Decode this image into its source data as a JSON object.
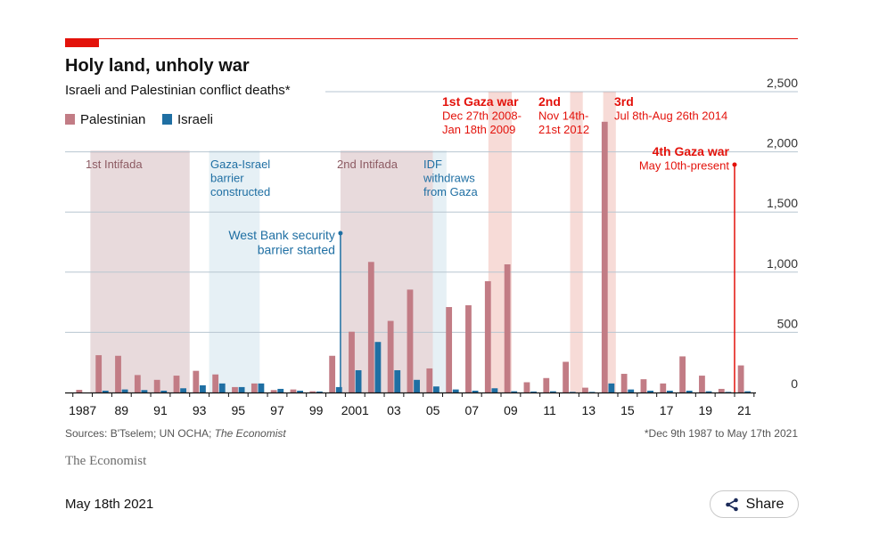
{
  "header": {
    "title": "Holy land, unholy war",
    "subtitle": "Israeli and Palestinian conflict deaths*"
  },
  "legend": [
    {
      "label": "Palestinian",
      "color": "#c27c85"
    },
    {
      "label": "Israeli",
      "color": "#1f6fa3"
    }
  ],
  "periods": [
    {
      "label_lines": [
        "1st Intifada"
      ],
      "start": 1987.9,
      "end": 1993.0,
      "kind": "palestinian-red"
    },
    {
      "label_lines": [
        "Gaza-Israel",
        "barrier",
        "constructed"
      ],
      "start": 1994.0,
      "end": 1996.6,
      "kind": "israeli-blue"
    },
    {
      "label_lines": [
        "2nd Intifada"
      ],
      "start": 2000.75,
      "end": 2005.5,
      "kind": "palestinian-red"
    },
    {
      "label_lines": [
        "IDF",
        "withdraws",
        "from Gaza"
      ],
      "start": 2005.5,
      "end": 2006.2,
      "kind": "israeli-blue"
    },
    {
      "label_lines": [
        "1st Gaza war",
        "Dec 27th 2008-",
        "Jan 18th 2009"
      ],
      "start": 2008.35,
      "end": 2009.55,
      "kind": "war"
    },
    {
      "label_lines": [
        "2nd",
        "Nov 14th-",
        "21st 2012"
      ],
      "start": 2012.55,
      "end": 2013.2,
      "kind": "war"
    },
    {
      "label_lines": [
        "3rd",
        "Jul 8th-Aug 26th 2014"
      ],
      "start": 2014.25,
      "end": 2014.9,
      "kind": "war"
    }
  ],
  "annotations": [
    {
      "label_lines": [
        "West Bank security",
        "barrier started"
      ],
      "year": 2000.75,
      "kind": "israeli-blue"
    },
    {
      "label_lines": [
        "4th Gaza war",
        "May 10th-present"
      ],
      "year": 2021.0,
      "kind": "war"
    }
  ],
  "chart_data": {
    "type": "bar",
    "title": "Holy land, unholy war",
    "subtitle": "Israeli and Palestinian conflict deaths*",
    "xlabel": "",
    "ylabel": "",
    "ylim": [
      0,
      2500
    ],
    "yticks": [
      0,
      500,
      1000,
      1500,
      2000,
      2500
    ],
    "ytick_labels": [
      "0",
      "500",
      "1,000",
      "1,500",
      "2,000",
      "2,500"
    ],
    "categories": [
      1987,
      1988,
      1989,
      1990,
      1991,
      1992,
      1993,
      1994,
      1995,
      1996,
      1997,
      1998,
      1999,
      2000,
      2001,
      2002,
      2003,
      2004,
      2005,
      2006,
      2007,
      2008,
      2009,
      2010,
      2011,
      2012,
      2013,
      2014,
      2015,
      2016,
      2017,
      2018,
      2019,
      2020,
      2021
    ],
    "xtick_labels": [
      {
        "year": 1987,
        "label": "1987"
      },
      {
        "year": 1989,
        "label": "89"
      },
      {
        "year": 1991,
        "label": "91"
      },
      {
        "year": 1993,
        "label": "93"
      },
      {
        "year": 1995,
        "label": "95"
      },
      {
        "year": 1997,
        "label": "97"
      },
      {
        "year": 1999,
        "label": "99"
      },
      {
        "year": 2001,
        "label": "2001"
      },
      {
        "year": 2003,
        "label": "03"
      },
      {
        "year": 2005,
        "label": "05"
      },
      {
        "year": 2007,
        "label": "07"
      },
      {
        "year": 2009,
        "label": "09"
      },
      {
        "year": 2011,
        "label": "11"
      },
      {
        "year": 2013,
        "label": "13"
      },
      {
        "year": 2015,
        "label": "15"
      },
      {
        "year": 2017,
        "label": "17"
      },
      {
        "year": 2019,
        "label": "19"
      },
      {
        "year": 2021,
        "label": "21"
      }
    ],
    "series": [
      {
        "name": "Palestinian",
        "color": "#c27c85",
        "values": [
          22,
          310,
          305,
          145,
          105,
          140,
          180,
          150,
          45,
          75,
          20,
          25,
          10,
          305,
          505,
          1085,
          595,
          855,
          200,
          710,
          725,
          925,
          1065,
          85,
          120,
          255,
          40,
          2250,
          155,
          110,
          75,
          300,
          140,
          30,
          225
        ]
      },
      {
        "name": "Israeli",
        "color": "#1f6fa3",
        "values": [
          0,
          15,
          25,
          20,
          15,
          35,
          60,
          75,
          45,
          75,
          30,
          15,
          8,
          45,
          185,
          420,
          185,
          105,
          50,
          25,
          15,
          35,
          10,
          8,
          10,
          5,
          5,
          75,
          25,
          15,
          15,
          15,
          10,
          5,
          10
        ]
      }
    ]
  },
  "footer": {
    "sources_prefix": "Sources: B'Tselem; UN OCHA; ",
    "sources_italic": "The Economist",
    "note": "*Dec 9th 1987 to May 17th 2021",
    "brand": "The Economist",
    "date": "May 18th 2021",
    "share_label": "Share",
    "share_icon": "share-icon"
  },
  "colors": {
    "accent_red": "#e3120b",
    "palestinian": "#c27c85",
    "israeli": "#1f6fa3",
    "shade_red": "#d8c2c5",
    "shade_blue": "#d6e6ef",
    "shade_war": "#f4cfca",
    "grid": "#b7c6d0",
    "annotation_blue": "#1f6fa3",
    "annotation_red_text": "#8c5a62",
    "annotation_war": "#e3120b"
  }
}
